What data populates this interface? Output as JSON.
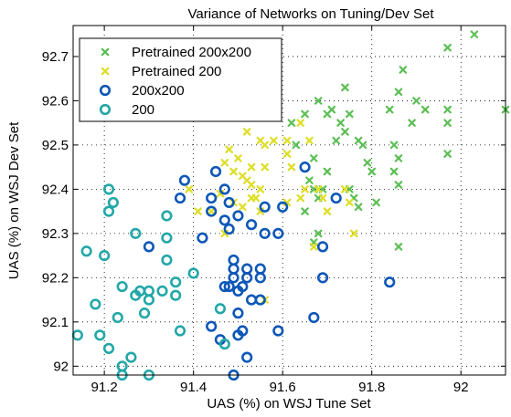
{
  "chart_data": {
    "type": "scatter",
    "title": "Variance of Networks on Tuning/Dev Set",
    "xlabel": "UAS (%) on WSJ Tune Set",
    "ylabel": "UAS (%) on WSJ Dev Set",
    "xlim": [
      91.13,
      92.1
    ],
    "ylim": [
      91.98,
      92.77
    ],
    "xticks": [
      91.2,
      91.4,
      91.6,
      91.8,
      92.0
    ],
    "xtick_labels": [
      "91.2",
      "91.4",
      "91.6",
      "91.8",
      "92"
    ],
    "yticks": [
      92.0,
      92.1,
      92.2,
      92.3,
      92.4,
      92.5,
      92.6,
      92.7
    ],
    "ytick_labels": [
      "92",
      "92.1",
      "92.2",
      "92.3",
      "92.4",
      "92.5",
      "92.6",
      "92.7"
    ],
    "grid": true,
    "legend_position": "top-left",
    "colors": {
      "pretrained_200x200": "#5cbf54",
      "pretrained_200": "#dede26",
      "c200x200": "#0d57b7",
      "c200": "#23a7a7"
    },
    "series": [
      {
        "name": "Pretrained 200x200",
        "marker": "x",
        "color": "#5cbf54",
        "points": [
          [
            92.03,
            92.75
          ],
          [
            91.97,
            92.72
          ],
          [
            91.87,
            92.67
          ],
          [
            91.74,
            92.63
          ],
          [
            91.86,
            92.62
          ],
          [
            91.68,
            92.6
          ],
          [
            91.9,
            92.6
          ],
          [
            91.71,
            92.58
          ],
          [
            91.84,
            92.58
          ],
          [
            91.92,
            92.58
          ],
          [
            91.97,
            92.58
          ],
          [
            92.1,
            92.58
          ],
          [
            91.65,
            92.57
          ],
          [
            91.7,
            92.57
          ],
          [
            91.75,
            92.57
          ],
          [
            91.62,
            92.55
          ],
          [
            91.73,
            92.55
          ],
          [
            91.89,
            92.55
          ],
          [
            91.97,
            92.55
          ],
          [
            91.74,
            92.53
          ],
          [
            91.72,
            92.51
          ],
          [
            91.77,
            92.51
          ],
          [
            91.63,
            92.5
          ],
          [
            91.78,
            92.5
          ],
          [
            91.85,
            92.5
          ],
          [
            91.67,
            92.47
          ],
          [
            91.86,
            92.47
          ],
          [
            91.97,
            92.48
          ],
          [
            91.79,
            92.46
          ],
          [
            91.7,
            92.44
          ],
          [
            91.8,
            92.44
          ],
          [
            91.85,
            92.44
          ],
          [
            91.66,
            92.42
          ],
          [
            91.69,
            92.4
          ],
          [
            91.86,
            92.41
          ],
          [
            91.67,
            92.4
          ],
          [
            91.75,
            92.4
          ],
          [
            91.68,
            92.38
          ],
          [
            91.76,
            92.38
          ],
          [
            91.81,
            92.37
          ],
          [
            91.77,
            92.36
          ],
          [
            91.65,
            92.35
          ],
          [
            91.68,
            92.3
          ],
          [
            91.67,
            92.28
          ],
          [
            91.86,
            92.27
          ]
        ]
      },
      {
        "name": "Pretrained 200",
        "marker": "x",
        "color": "#dede26",
        "points": [
          [
            91.57,
            92.62
          ],
          [
            91.49,
            92.57
          ],
          [
            91.64,
            92.55
          ],
          [
            91.52,
            92.53
          ],
          [
            91.55,
            92.51
          ],
          [
            91.56,
            92.5
          ],
          [
            91.58,
            92.51
          ],
          [
            91.61,
            92.51
          ],
          [
            91.66,
            92.51
          ],
          [
            91.48,
            92.49
          ],
          [
            91.61,
            92.48
          ],
          [
            91.5,
            92.47
          ],
          [
            91.47,
            92.46
          ],
          [
            91.53,
            92.45
          ],
          [
            91.56,
            92.45
          ],
          [
            91.62,
            92.45
          ],
          [
            91.49,
            92.44
          ],
          [
            91.51,
            92.43
          ],
          [
            91.52,
            92.42
          ],
          [
            91.53,
            92.41
          ],
          [
            91.55,
            92.4
          ],
          [
            91.65,
            92.4
          ],
          [
            91.39,
            92.4
          ],
          [
            91.68,
            92.4
          ],
          [
            91.74,
            92.4
          ],
          [
            91.46,
            92.39
          ],
          [
            91.53,
            92.38
          ],
          [
            91.54,
            92.38
          ],
          [
            91.64,
            92.38
          ],
          [
            91.69,
            92.38
          ],
          [
            91.49,
            92.37
          ],
          [
            91.61,
            92.37
          ],
          [
            91.75,
            92.37
          ],
          [
            91.51,
            92.36
          ],
          [
            91.44,
            92.35
          ],
          [
            91.41,
            92.35
          ],
          [
            91.55,
            92.35
          ],
          [
            91.7,
            92.35
          ],
          [
            91.47,
            92.3
          ],
          [
            91.76,
            92.3
          ],
          [
            91.67,
            92.27
          ],
          [
            91.56,
            92.15
          ]
        ]
      },
      {
        "name": "200x200",
        "marker": "o",
        "color": "#0d57b7",
        "points": [
          [
            91.65,
            92.45
          ],
          [
            91.45,
            92.44
          ],
          [
            91.38,
            92.42
          ],
          [
            91.47,
            92.4
          ],
          [
            91.44,
            92.38
          ],
          [
            91.37,
            92.38
          ],
          [
            91.72,
            92.38
          ],
          [
            91.48,
            92.37
          ],
          [
            91.56,
            92.36
          ],
          [
            91.6,
            92.36
          ],
          [
            91.44,
            92.35
          ],
          [
            91.5,
            92.34
          ],
          [
            91.47,
            92.33
          ],
          [
            91.53,
            92.32
          ],
          [
            91.48,
            92.31
          ],
          [
            91.56,
            92.3
          ],
          [
            91.59,
            92.3
          ],
          [
            91.42,
            92.29
          ],
          [
            91.3,
            92.27
          ],
          [
            91.69,
            92.27
          ],
          [
            91.49,
            92.24
          ],
          [
            91.49,
            92.22
          ],
          [
            91.52,
            92.22
          ],
          [
            91.55,
            92.22
          ],
          [
            91.49,
            92.2
          ],
          [
            91.52,
            92.2
          ],
          [
            91.55,
            92.2
          ],
          [
            91.69,
            92.2
          ],
          [
            91.84,
            92.19
          ],
          [
            91.48,
            92.18
          ],
          [
            91.51,
            92.18
          ],
          [
            91.47,
            92.18
          ],
          [
            91.5,
            92.17
          ],
          [
            91.53,
            92.15
          ],
          [
            91.55,
            92.15
          ],
          [
            91.5,
            92.12
          ],
          [
            91.67,
            92.11
          ],
          [
            91.44,
            92.09
          ],
          [
            91.51,
            92.08
          ],
          [
            91.59,
            92.08
          ],
          [
            91.5,
            92.07
          ],
          [
            91.46,
            92.06
          ],
          [
            91.52,
            92.02
          ],
          [
            91.49,
            91.98
          ]
        ]
      },
      {
        "name": "200",
        "marker": "o",
        "color": "#23a7a7",
        "points": [
          [
            91.21,
            92.4
          ],
          [
            91.22,
            92.37
          ],
          [
            91.21,
            92.35
          ],
          [
            91.34,
            92.34
          ],
          [
            91.27,
            92.3
          ],
          [
            91.34,
            92.29
          ],
          [
            91.16,
            92.26
          ],
          [
            91.2,
            92.25
          ],
          [
            91.34,
            92.24
          ],
          [
            91.4,
            92.21
          ],
          [
            91.36,
            92.19
          ],
          [
            91.24,
            92.18
          ],
          [
            91.28,
            92.17
          ],
          [
            91.3,
            92.17
          ],
          [
            91.33,
            92.17
          ],
          [
            91.27,
            92.16
          ],
          [
            91.36,
            92.16
          ],
          [
            91.3,
            92.15
          ],
          [
            91.18,
            92.14
          ],
          [
            91.46,
            92.13
          ],
          [
            91.29,
            92.12
          ],
          [
            91.23,
            92.11
          ],
          [
            91.37,
            92.08
          ],
          [
            91.19,
            92.07
          ],
          [
            91.14,
            92.07
          ],
          [
            91.47,
            92.05
          ],
          [
            91.21,
            92.04
          ],
          [
            91.26,
            92.02
          ],
          [
            91.24,
            92.0
          ],
          [
            91.24,
            91.98
          ],
          [
            91.3,
            91.98
          ]
        ]
      }
    ]
  }
}
